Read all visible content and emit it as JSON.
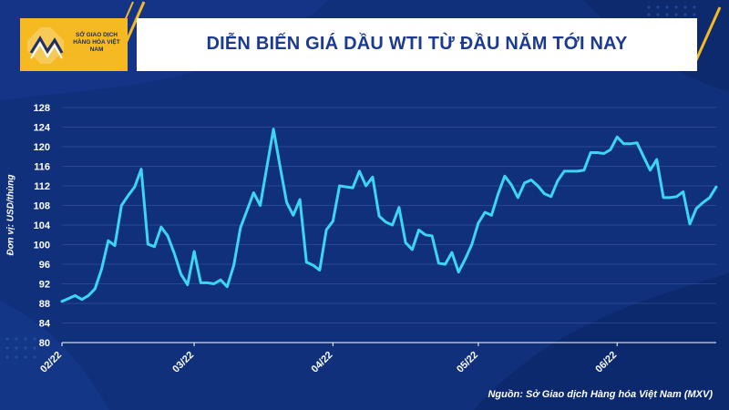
{
  "header": {
    "logo_text": "SỞ GIAO DỊCH HÀNG HÓA VIỆT NAM",
    "title": "DIỄN BIẾN GIÁ DẦU WTI TỪ ĐẦU NĂM TỚI NAY"
  },
  "footer": {
    "source": "Nguồn: Sở Giao dịch Hàng hóa Việt Nam (MXV)"
  },
  "colors": {
    "background": "#10307c",
    "accent": "#f5b921",
    "line": "#3cd6f2",
    "text": "#ffffff"
  },
  "chart_data": {
    "type": "line",
    "title": "DIỄN BIẾN GIÁ DẦU WTI TỪ ĐẦU NĂM TỚI NAY",
    "ylabel": "Đơn vị: USD/thùng",
    "xlabel": "",
    "ylim": [
      80,
      128
    ],
    "yticks": [
      80,
      84,
      88,
      92,
      96,
      100,
      104,
      108,
      112,
      116,
      120,
      124,
      128
    ],
    "grid": "horizontal",
    "x_tick_labels": [
      "02/22",
      "03/22",
      "04/22",
      "05/22",
      "06/22"
    ],
    "x_tick_index": [
      0,
      20,
      41,
      63,
      84
    ],
    "series": [
      {
        "values": [
          88.4,
          89.0,
          89.6,
          88.8,
          89.6,
          91.0,
          95.0,
          100.8,
          99.8,
          108.0,
          110.0,
          111.8,
          115.4,
          100.1,
          99.6,
          103.6,
          101.8,
          98.2,
          94.0,
          91.8,
          98.6,
          92.2,
          92.2,
          92.0,
          92.8,
          91.4,
          95.8,
          103.4,
          107.0,
          110.6,
          108.0,
          115.8,
          123.6,
          116.0,
          108.6,
          106.0,
          109.2,
          96.4,
          95.8,
          94.8,
          103.0,
          104.8,
          112.0,
          111.8,
          111.6,
          115.0,
          112.0,
          113.8,
          105.8,
          104.6,
          104.0,
          107.6,
          100.4,
          99.0,
          103.0,
          102.0,
          101.8,
          96.2,
          96.0,
          98.4,
          94.4,
          97.0,
          100.0,
          104.4,
          106.6,
          106.0,
          110.4,
          114.0,
          112.2,
          109.6,
          112.6,
          113.2,
          112.0,
          110.4,
          109.8,
          113.0,
          115.0,
          115.0,
          115.0,
          115.2,
          118.8,
          118.8,
          118.6,
          119.4,
          122.0,
          120.6,
          120.6,
          120.8,
          118.0,
          115.2,
          117.4,
          109.6,
          109.6,
          109.8,
          110.8,
          104.2,
          107.4,
          108.6,
          109.6,
          111.8
        ]
      }
    ]
  }
}
